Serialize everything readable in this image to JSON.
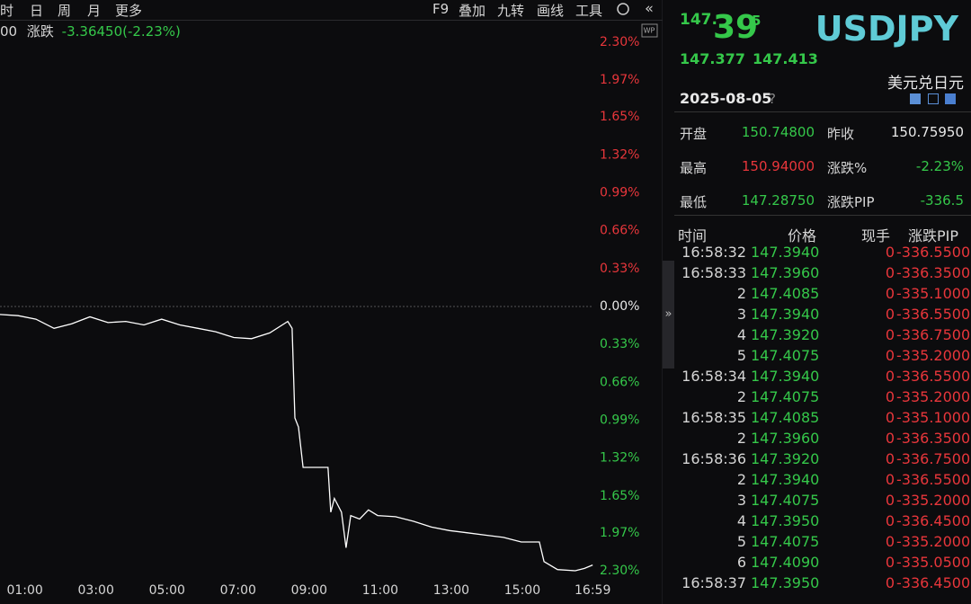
{
  "toolbar": {
    "left": [
      "时",
      "日",
      "周",
      "月",
      "更多"
    ],
    "right": [
      "F9",
      "叠加",
      "九转",
      "画线",
      "工具"
    ]
  },
  "quote_bar": {
    "prefix": "00",
    "label": "涨跌",
    "value": "-3.36450(-2.23%)"
  },
  "chart_data": {
    "type": "line",
    "x": [
      0.3,
      0.81,
      1.31,
      1.82,
      2.32,
      2.83,
      3.34,
      3.84,
      4.35,
      4.85,
      5.36,
      5.87,
      6.37,
      6.88,
      7.38,
      7.89,
      8.4,
      8.52,
      8.6,
      8.7,
      8.83,
      9.53,
      9.61,
      9.71,
      9.91,
      10.04,
      10.17,
      10.42,
      10.67,
      10.93,
      11.43,
      11.94,
      12.44,
      12.95,
      13.46,
      13.96,
      14.47,
      14.97,
      15.48,
      15.61,
      15.99,
      16.49,
      16.75,
      16.98
    ],
    "series": [
      {
        "color": "#ffffff",
        "values": [
          -0.07,
          -0.08,
          -0.11,
          -0.19,
          -0.15,
          -0.09,
          -0.14,
          -0.13,
          -0.16,
          -0.11,
          -0.16,
          -0.19,
          -0.22,
          -0.27,
          -0.28,
          -0.23,
          -0.13,
          -0.19,
          -0.97,
          -1.05,
          -1.4,
          -1.4,
          -1.79,
          -1.67,
          -1.79,
          -2.1,
          -1.82,
          -1.85,
          -1.77,
          -1.82,
          -1.83,
          -1.87,
          -1.92,
          -1.95,
          -1.97,
          -1.99,
          -2.01,
          -2.05,
          -2.05,
          -2.22,
          -2.29,
          -2.3,
          -2.28,
          -2.25
        ]
      }
    ],
    "xlim": [
      0.3,
      17.0
    ],
    "xticks": [
      {
        "value": 1,
        "label": "01:00"
      },
      {
        "value": 3,
        "label": "03:00"
      },
      {
        "value": 5,
        "label": "05:00"
      },
      {
        "value": 7,
        "label": "07:00"
      },
      {
        "value": 9,
        "label": "09:00"
      },
      {
        "value": 11,
        "label": "11:00"
      },
      {
        "value": 13,
        "label": "13:00"
      },
      {
        "value": 15,
        "label": "15:00"
      },
      {
        "value": 16.98,
        "label": "16:59"
      }
    ],
    "ylim": [
      -2.3,
      2.3
    ],
    "yticks": [
      {
        "value": 2.3,
        "label": "2.30%"
      },
      {
        "value": 1.97,
        "label": "1.97%"
      },
      {
        "value": 1.65,
        "label": "1.65%"
      },
      {
        "value": 1.32,
        "label": "1.32%"
      },
      {
        "value": 0.99,
        "label": "0.99%"
      },
      {
        "value": 0.66,
        "label": "0.66%"
      },
      {
        "value": 0.33,
        "label": "0.33%"
      },
      {
        "value": 0,
        "label": "0.00%"
      },
      {
        "value": -0.33,
        "label": "0.33%"
      },
      {
        "value": -0.66,
        "label": "0.66%"
      },
      {
        "value": -0.99,
        "label": "0.99%"
      },
      {
        "value": -1.32,
        "label": "1.32%"
      },
      {
        "value": -1.65,
        "label": "1.65%"
      },
      {
        "value": -1.97,
        "label": "1.97%"
      },
      {
        "value": -2.3,
        "label": "2.30%"
      }
    ]
  },
  "quote": {
    "price_head": "147.",
    "price_big": "39",
    "price_tail": "5",
    "bid": "147.377",
    "ask": "147.413",
    "symbol": "USDJPY",
    "name": "美元兑日元",
    "date": "2025-08-05",
    "help": "?"
  },
  "stats": [
    [
      "开盘",
      "150.74800",
      "昨收",
      "150.75950"
    ],
    [
      "最高",
      "150.94000",
      "涨跌%",
      "-2.23%"
    ],
    [
      "最低",
      "147.28750",
      "涨跌PIP",
      "-336.5"
    ]
  ],
  "trades": {
    "header": [
      "时间",
      "价格",
      "现手",
      "涨跌PIP"
    ],
    "rows": [
      [
        "16:58:32",
        "147.3940",
        "0",
        "-336.5500"
      ],
      [
        "16:58:33",
        "147.3960",
        "0",
        "-336.3500"
      ],
      [
        "2",
        "147.4085",
        "0",
        "-335.1000"
      ],
      [
        "3",
        "147.3940",
        "0",
        "-336.5500"
      ],
      [
        "4",
        "147.3920",
        "0",
        "-336.7500"
      ],
      [
        "5",
        "147.4075",
        "0",
        "-335.2000"
      ],
      [
        "16:58:34",
        "147.3940",
        "0",
        "-336.5500"
      ],
      [
        "2",
        "147.4075",
        "0",
        "-335.2000"
      ],
      [
        "16:58:35",
        "147.4085",
        "0",
        "-335.1000"
      ],
      [
        "2",
        "147.3960",
        "0",
        "-336.3500"
      ],
      [
        "16:58:36",
        "147.3920",
        "0",
        "-336.7500"
      ],
      [
        "2",
        "147.3940",
        "0",
        "-336.5500"
      ],
      [
        "3",
        "147.4075",
        "0",
        "-335.2000"
      ],
      [
        "4",
        "147.3950",
        "0",
        "-336.4500"
      ],
      [
        "5",
        "147.4075",
        "0",
        "-335.2000"
      ],
      [
        "6",
        "147.4090",
        "0",
        "-335.0500"
      ],
      [
        "16:58:37",
        "147.3950",
        "0",
        "-336.4500"
      ]
    ]
  }
}
